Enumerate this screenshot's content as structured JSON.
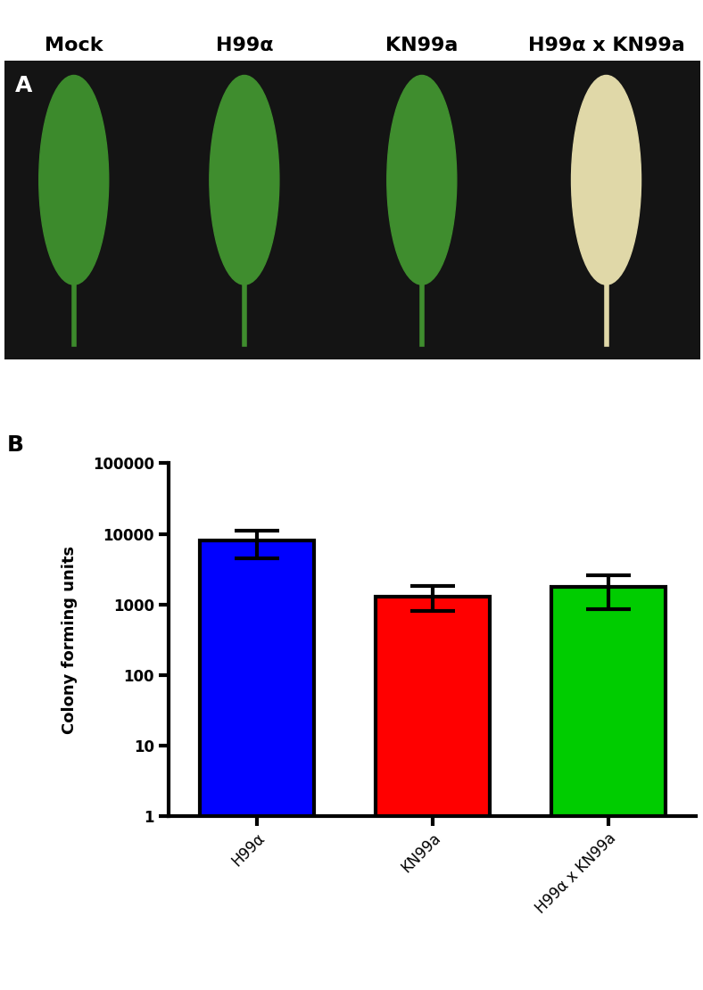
{
  "panel_a": {
    "label": "A",
    "columns": [
      "Mock",
      "H99α",
      "KN99a",
      "H99α x KN99a"
    ]
  },
  "chart_data": {
    "type": "bar",
    "panel_label": "B",
    "y_label": "Colony forming units",
    "categories": [
      "H99α",
      "KN99a",
      "H99α x KN99a"
    ],
    "values": [
      8000,
      1300,
      1750
    ],
    "error_low": [
      3500,
      500,
      900
    ],
    "error_high": [
      3000,
      500,
      850
    ],
    "colors": [
      "#0000ff",
      "#ff0000",
      "#00cc00"
    ],
    "log": "y",
    "ylim": [
      1,
      100000
    ],
    "yticks": [
      1,
      10,
      100,
      1000,
      10000,
      100000
    ],
    "grid": false
  }
}
